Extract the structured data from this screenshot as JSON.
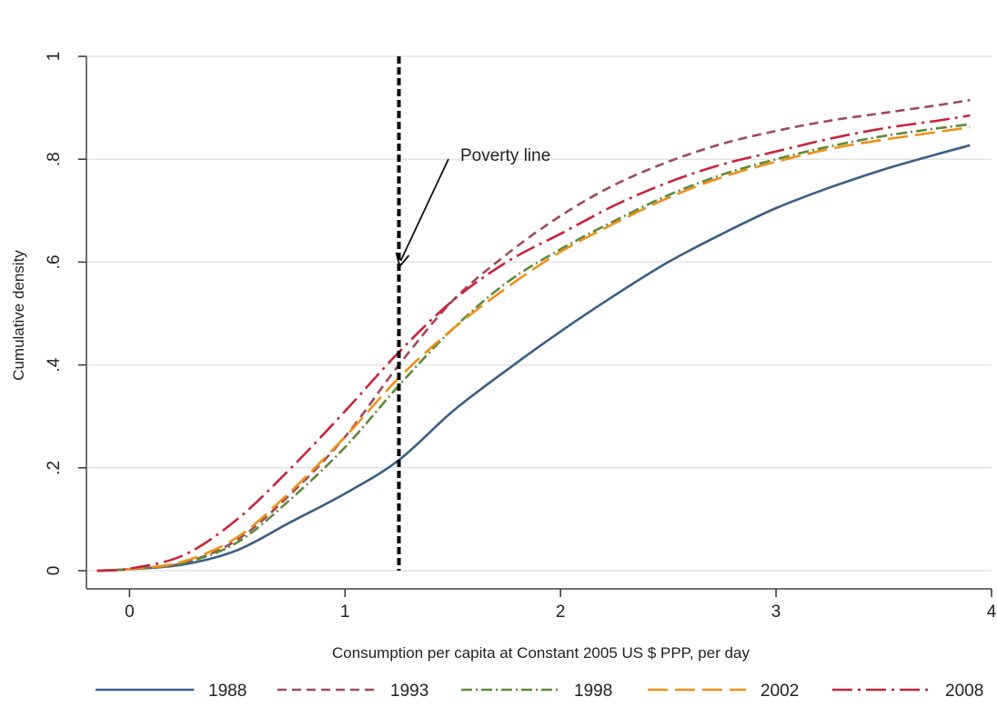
{
  "chart_data": {
    "type": "line",
    "title": "",
    "xlabel": "Consumption per capita at Constant 2005 US $ PPP, per day",
    "ylabel": "Cumulative density",
    "xlim": [
      -0.2,
      4.0
    ],
    "ylim": [
      0,
      1
    ],
    "x_ticks": [
      0,
      1,
      2,
      3,
      4
    ],
    "y_ticks": [
      0,
      0.2,
      0.4,
      0.6,
      0.8,
      1.0
    ],
    "x_tick_labels": [
      "0",
      "1",
      "2",
      "3",
      "4"
    ],
    "y_tick_labels": [
      "0",
      ".2",
      ".4",
      ".6",
      ".8",
      "1"
    ],
    "grid": "horizontal",
    "legend_position": "bottom",
    "reference_line": {
      "x": 1.25,
      "label": "Poverty line"
    },
    "series": [
      {
        "name": "1988",
        "color": "#3b5f86",
        "style": "solid",
        "points": [
          [
            -0.15,
            0
          ],
          [
            0,
            0.003
          ],
          [
            0.25,
            0.012
          ],
          [
            0.5,
            0.04
          ],
          [
            0.75,
            0.095
          ],
          [
            1,
            0.15
          ],
          [
            1.25,
            0.215
          ],
          [
            1.5,
            0.31
          ],
          [
            1.75,
            0.39
          ],
          [
            2,
            0.465
          ],
          [
            2.25,
            0.535
          ],
          [
            2.5,
            0.6
          ],
          [
            2.75,
            0.655
          ],
          [
            3,
            0.705
          ],
          [
            3.25,
            0.745
          ],
          [
            3.5,
            0.78
          ],
          [
            3.75,
            0.81
          ],
          [
            3.9,
            0.827
          ]
        ]
      },
      {
        "name": "1993",
        "color": "#9e4a5a",
        "style": "dash",
        "points": [
          [
            -0.15,
            0
          ],
          [
            0,
            0.003
          ],
          [
            0.25,
            0.015
          ],
          [
            0.5,
            0.06
          ],
          [
            0.75,
            0.15
          ],
          [
            1,
            0.26
          ],
          [
            1.25,
            0.4
          ],
          [
            1.5,
            0.525
          ],
          [
            1.75,
            0.615
          ],
          [
            2,
            0.69
          ],
          [
            2.25,
            0.75
          ],
          [
            2.5,
            0.795
          ],
          [
            2.75,
            0.83
          ],
          [
            3,
            0.855
          ],
          [
            3.25,
            0.875
          ],
          [
            3.5,
            0.89
          ],
          [
            3.75,
            0.905
          ],
          [
            3.9,
            0.915
          ]
        ]
      },
      {
        "name": "1998",
        "color": "#5f8a3a",
        "style": "dashdot",
        "points": [
          [
            -0.15,
            0
          ],
          [
            0,
            0.003
          ],
          [
            0.25,
            0.015
          ],
          [
            0.5,
            0.055
          ],
          [
            0.75,
            0.14
          ],
          [
            1,
            0.24
          ],
          [
            1.25,
            0.36
          ],
          [
            1.5,
            0.47
          ],
          [
            1.75,
            0.56
          ],
          [
            2,
            0.625
          ],
          [
            2.25,
            0.68
          ],
          [
            2.5,
            0.73
          ],
          [
            2.75,
            0.77
          ],
          [
            3,
            0.8
          ],
          [
            3.25,
            0.825
          ],
          [
            3.5,
            0.845
          ],
          [
            3.75,
            0.86
          ],
          [
            3.9,
            0.868
          ]
        ]
      },
      {
        "name": "2002",
        "color": "#f0901a",
        "style": "longdash",
        "points": [
          [
            -0.15,
            0
          ],
          [
            0,
            0.003
          ],
          [
            0.25,
            0.018
          ],
          [
            0.5,
            0.065
          ],
          [
            0.75,
            0.155
          ],
          [
            1,
            0.26
          ],
          [
            1.25,
            0.375
          ],
          [
            1.5,
            0.47
          ],
          [
            1.75,
            0.55
          ],
          [
            2,
            0.62
          ],
          [
            2.25,
            0.675
          ],
          [
            2.5,
            0.725
          ],
          [
            2.75,
            0.765
          ],
          [
            3,
            0.795
          ],
          [
            3.25,
            0.82
          ],
          [
            3.5,
            0.838
          ],
          [
            3.75,
            0.853
          ],
          [
            3.9,
            0.862
          ]
        ]
      },
      {
        "name": "2008",
        "color": "#c8243e",
        "style": "longdashdot",
        "points": [
          [
            -0.15,
            0
          ],
          [
            0,
            0.004
          ],
          [
            0.25,
            0.03
          ],
          [
            0.5,
            0.1
          ],
          [
            0.75,
            0.2
          ],
          [
            1,
            0.31
          ],
          [
            1.25,
            0.425
          ],
          [
            1.5,
            0.525
          ],
          [
            1.75,
            0.6
          ],
          [
            2,
            0.655
          ],
          [
            2.25,
            0.71
          ],
          [
            2.5,
            0.755
          ],
          [
            2.75,
            0.79
          ],
          [
            3,
            0.815
          ],
          [
            3.25,
            0.84
          ],
          [
            3.5,
            0.86
          ],
          [
            3.75,
            0.875
          ],
          [
            3.9,
            0.885
          ]
        ]
      }
    ]
  }
}
